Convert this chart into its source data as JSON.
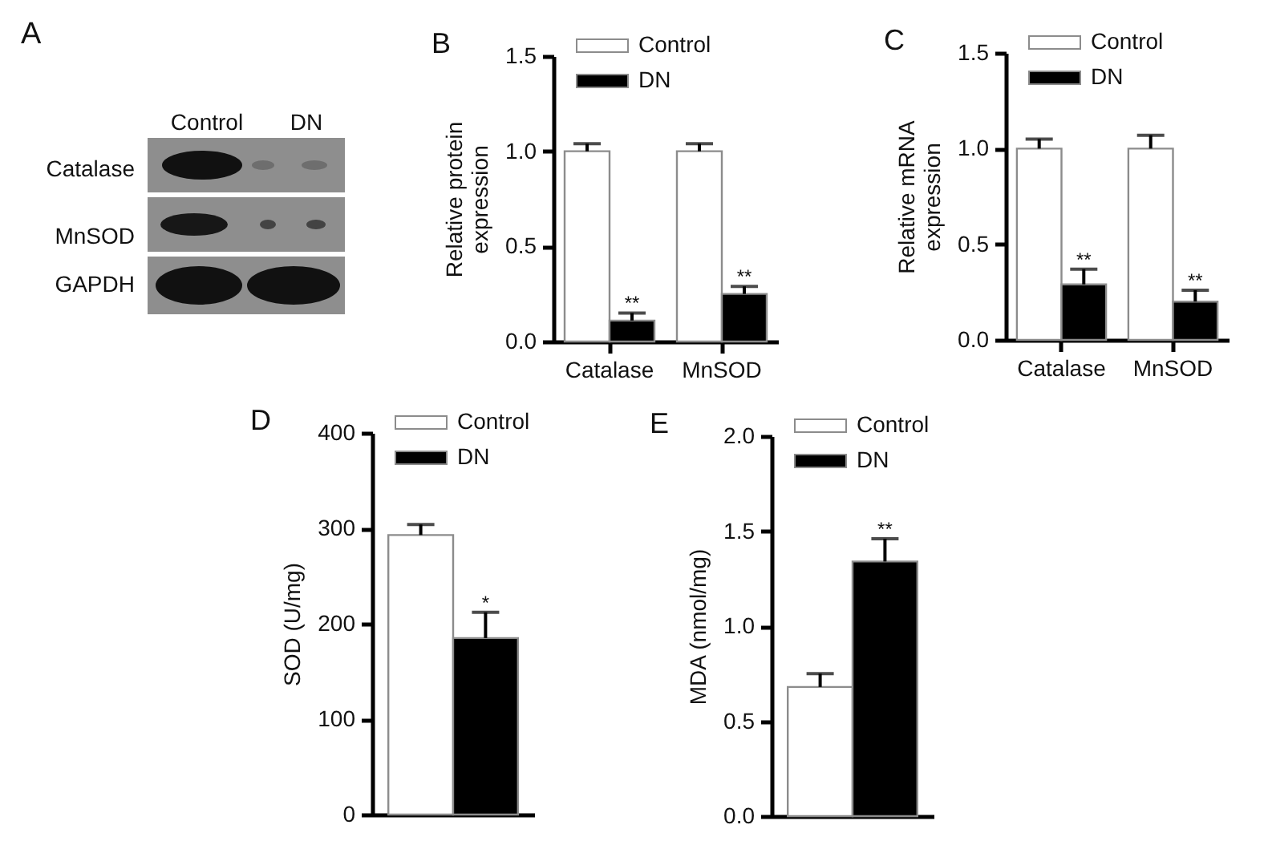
{
  "chart_data": [
    {
      "type": "other",
      "title": "A",
      "annotations": [
        "Control",
        "DN",
        "Catalase",
        "MnSOD",
        "GAPDH"
      ]
    },
    {
      "type": "bar",
      "title": "B",
      "ylabel": "Relative protein expression",
      "categories": [
        "Catalase",
        "MnSOD"
      ],
      "series": [
        {
          "name": "Control",
          "color": "#ffffff",
          "values": [
            1.0,
            1.0
          ],
          "errors": [
            [
              1.0,
              1.04
            ],
            [
              1.0,
              1.04
            ]
          ]
        },
        {
          "name": "DN",
          "color": "#000000",
          "values": [
            0.11,
            0.25
          ],
          "errors": [
            [
              0.11,
              0.15
            ],
            [
              0.25,
              0.29
            ]
          ]
        }
      ],
      "ylim": [
        0,
        1.5
      ],
      "yticks": [
        {
          "value": 0,
          "label": "0.0"
        },
        0.5,
        {
          "value": 1,
          "label": "1.0"
        },
        1.5
      ],
      "legend": "top left",
      "annotations": [
        "**",
        "**"
      ]
    },
    {
      "type": "bar",
      "title": "C",
      "ylabel": "Relative mRNA expression",
      "categories": [
        "Catalase",
        "MnSOD"
      ],
      "series": [
        {
          "name": "Control",
          "color": "#ffffff",
          "values": [
            1.0,
            1.0
          ],
          "errors": [
            [
              1.0,
              1.05
            ],
            [
              1.0,
              1.07
            ]
          ]
        },
        {
          "name": "DN",
          "color": "#000000",
          "values": [
            0.29,
            0.2
          ],
          "errors": [
            [
              0.29,
              0.37
            ],
            [
              0.2,
              0.26
            ]
          ]
        }
      ],
      "ylim": [
        0,
        1.5
      ],
      "yticks": [
        {
          "value": 0,
          "label": "0.0"
        },
        0.5,
        {
          "value": 1,
          "label": "1.0"
        },
        1.5
      ],
      "legend": "top left",
      "annotations": [
        "**",
        "**"
      ]
    },
    {
      "type": "bar",
      "title": "D",
      "ylabel": "SOD (U/mg)",
      "categories": [
        null
      ],
      "series": [
        {
          "name": "Control",
          "color": "#ffffff",
          "values": [
            293
          ],
          "errors": [
            [
              293,
              304
            ]
          ]
        },
        {
          "name": "DN",
          "color": "#000000",
          "values": [
            185
          ],
          "errors": [
            [
              185,
              212
            ]
          ]
        }
      ],
      "ylim": [
        0,
        400
      ],
      "yticks": [
        0,
        100,
        200,
        300,
        400
      ],
      "legend": "top left",
      "annotations": [
        "*"
      ]
    },
    {
      "type": "bar",
      "title": "E",
      "ylabel": "MDA (nmol/mg)",
      "categories": [
        null
      ],
      "series": [
        {
          "name": "Control",
          "color": "#ffffff",
          "values": [
            0.68
          ],
          "errors": [
            [
              0.68,
              0.75
            ]
          ]
        },
        {
          "name": "DN",
          "color": "#000000",
          "values": [
            1.34
          ],
          "errors": [
            [
              1.34,
              1.46
            ]
          ]
        }
      ],
      "ylim": [
        0,
        2
      ],
      "yticks": [
        {
          "value": 0,
          "label": "0.0"
        },
        0.5,
        {
          "value": 1,
          "label": "1.0"
        },
        1.5,
        {
          "value": 2,
          "label": "2.0"
        }
      ],
      "legend": "top left",
      "annotations": [
        "**"
      ]
    }
  ]
}
